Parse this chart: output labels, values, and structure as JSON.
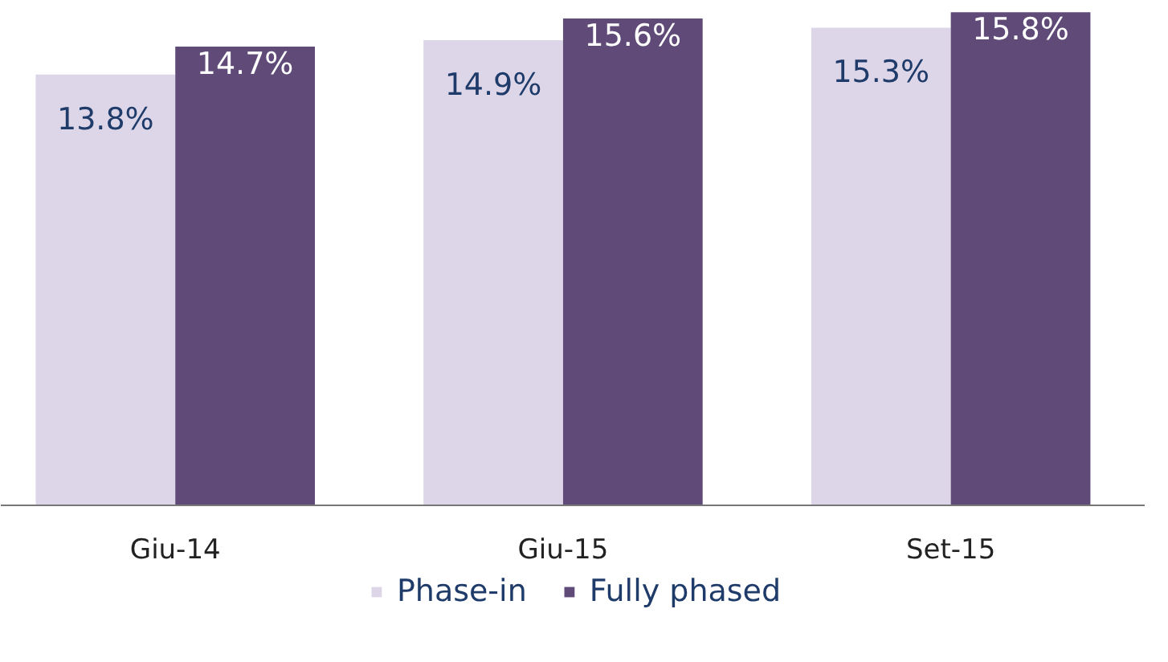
{
  "chart_data": {
    "type": "bar",
    "categories": [
      "Giu-14",
      "Giu-15",
      "Set-15"
    ],
    "series": [
      {
        "name": "Phase-in",
        "color": "#ddd6e8",
        "values": [
          13.8,
          14.9,
          15.3
        ],
        "value_labels": [
          "13.8%",
          "14.9%",
          "15.3%"
        ]
      },
      {
        "name": "Fully phased",
        "color": "#5f4a78",
        "values": [
          14.7,
          15.6,
          15.8
        ],
        "value_labels": [
          "14.7%",
          "15.6%",
          "15.8%"
        ]
      }
    ],
    "tick_labels": "x",
    "legend": "bottom"
  }
}
